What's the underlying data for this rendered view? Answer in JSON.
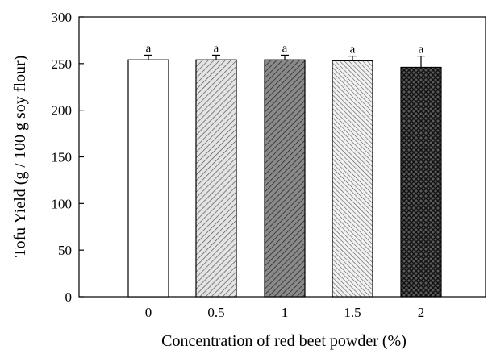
{
  "chart_data": {
    "type": "bar",
    "xlabel": "Concentration of red beet powder (%)",
    "ylabel": "Tofu Yield (g / 100 g soy flour)",
    "ylim": [
      0,
      300
    ],
    "yticks": [
      0,
      50,
      100,
      150,
      200,
      250,
      300
    ],
    "categories": [
      "0",
      "0.5",
      "1",
      "1.5",
      "2"
    ],
    "values": [
      254,
      254,
      254,
      253,
      246
    ],
    "errors": [
      5,
      5,
      5,
      5,
      12
    ],
    "significance_labels": [
      "a",
      "a",
      "a",
      "a",
      "a"
    ],
    "bar_fills": [
      "plain",
      "light-hatch",
      "dark-hatch",
      "dense-hatch",
      "crosshatch"
    ],
    "grid": false,
    "legend": "none"
  }
}
